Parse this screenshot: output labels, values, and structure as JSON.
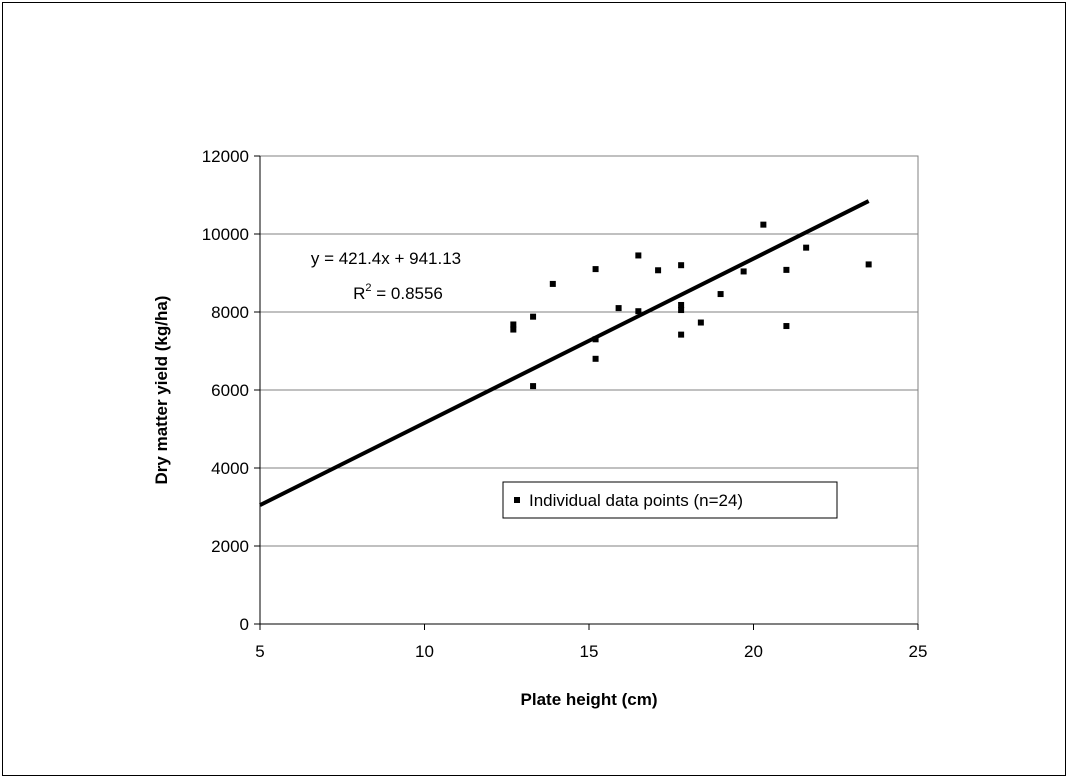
{
  "chart_data": {
    "type": "scatter",
    "xlabel": "Plate height (cm)",
    "ylabel": "Dry matter yield (kg/ha)",
    "xlim": [
      5,
      25
    ],
    "ylim": [
      0,
      12000
    ],
    "xticks": [
      "5",
      "10",
      "15",
      "20",
      "25"
    ],
    "yticks": [
      "0",
      "2000",
      "4000",
      "6000",
      "8000",
      "10000",
      "12000"
    ],
    "grid": "horizontal",
    "legend_position": "lower-right",
    "series": [
      {
        "name": "Individual data points (n=24)",
        "x": [
          12.7,
          12.7,
          13.3,
          13.3,
          13.9,
          15.2,
          15.2,
          15.2,
          15.9,
          16.5,
          16.5,
          17.1,
          17.8,
          17.8,
          17.8,
          17.8,
          18.4,
          19.0,
          19.7,
          20.3,
          21.0,
          21.0,
          21.6,
          23.5
        ],
        "y": [
          7550,
          7680,
          6100,
          7880,
          8720,
          9100,
          7300,
          6800,
          8100,
          9450,
          8020,
          9070,
          9200,
          8180,
          8050,
          7420,
          7730,
          8460,
          9040,
          10240,
          9080,
          7640,
          9650,
          9220
        ]
      }
    ],
    "trendline": {
      "x_start": 5,
      "x_end": 23.5,
      "slope": 421.4,
      "intercept": 941.13,
      "equation": "y = 421.4x + 941.13",
      "r2_prefix": "R",
      "r2_superscript": "2",
      "r2_value": " = 0.8556"
    }
  }
}
